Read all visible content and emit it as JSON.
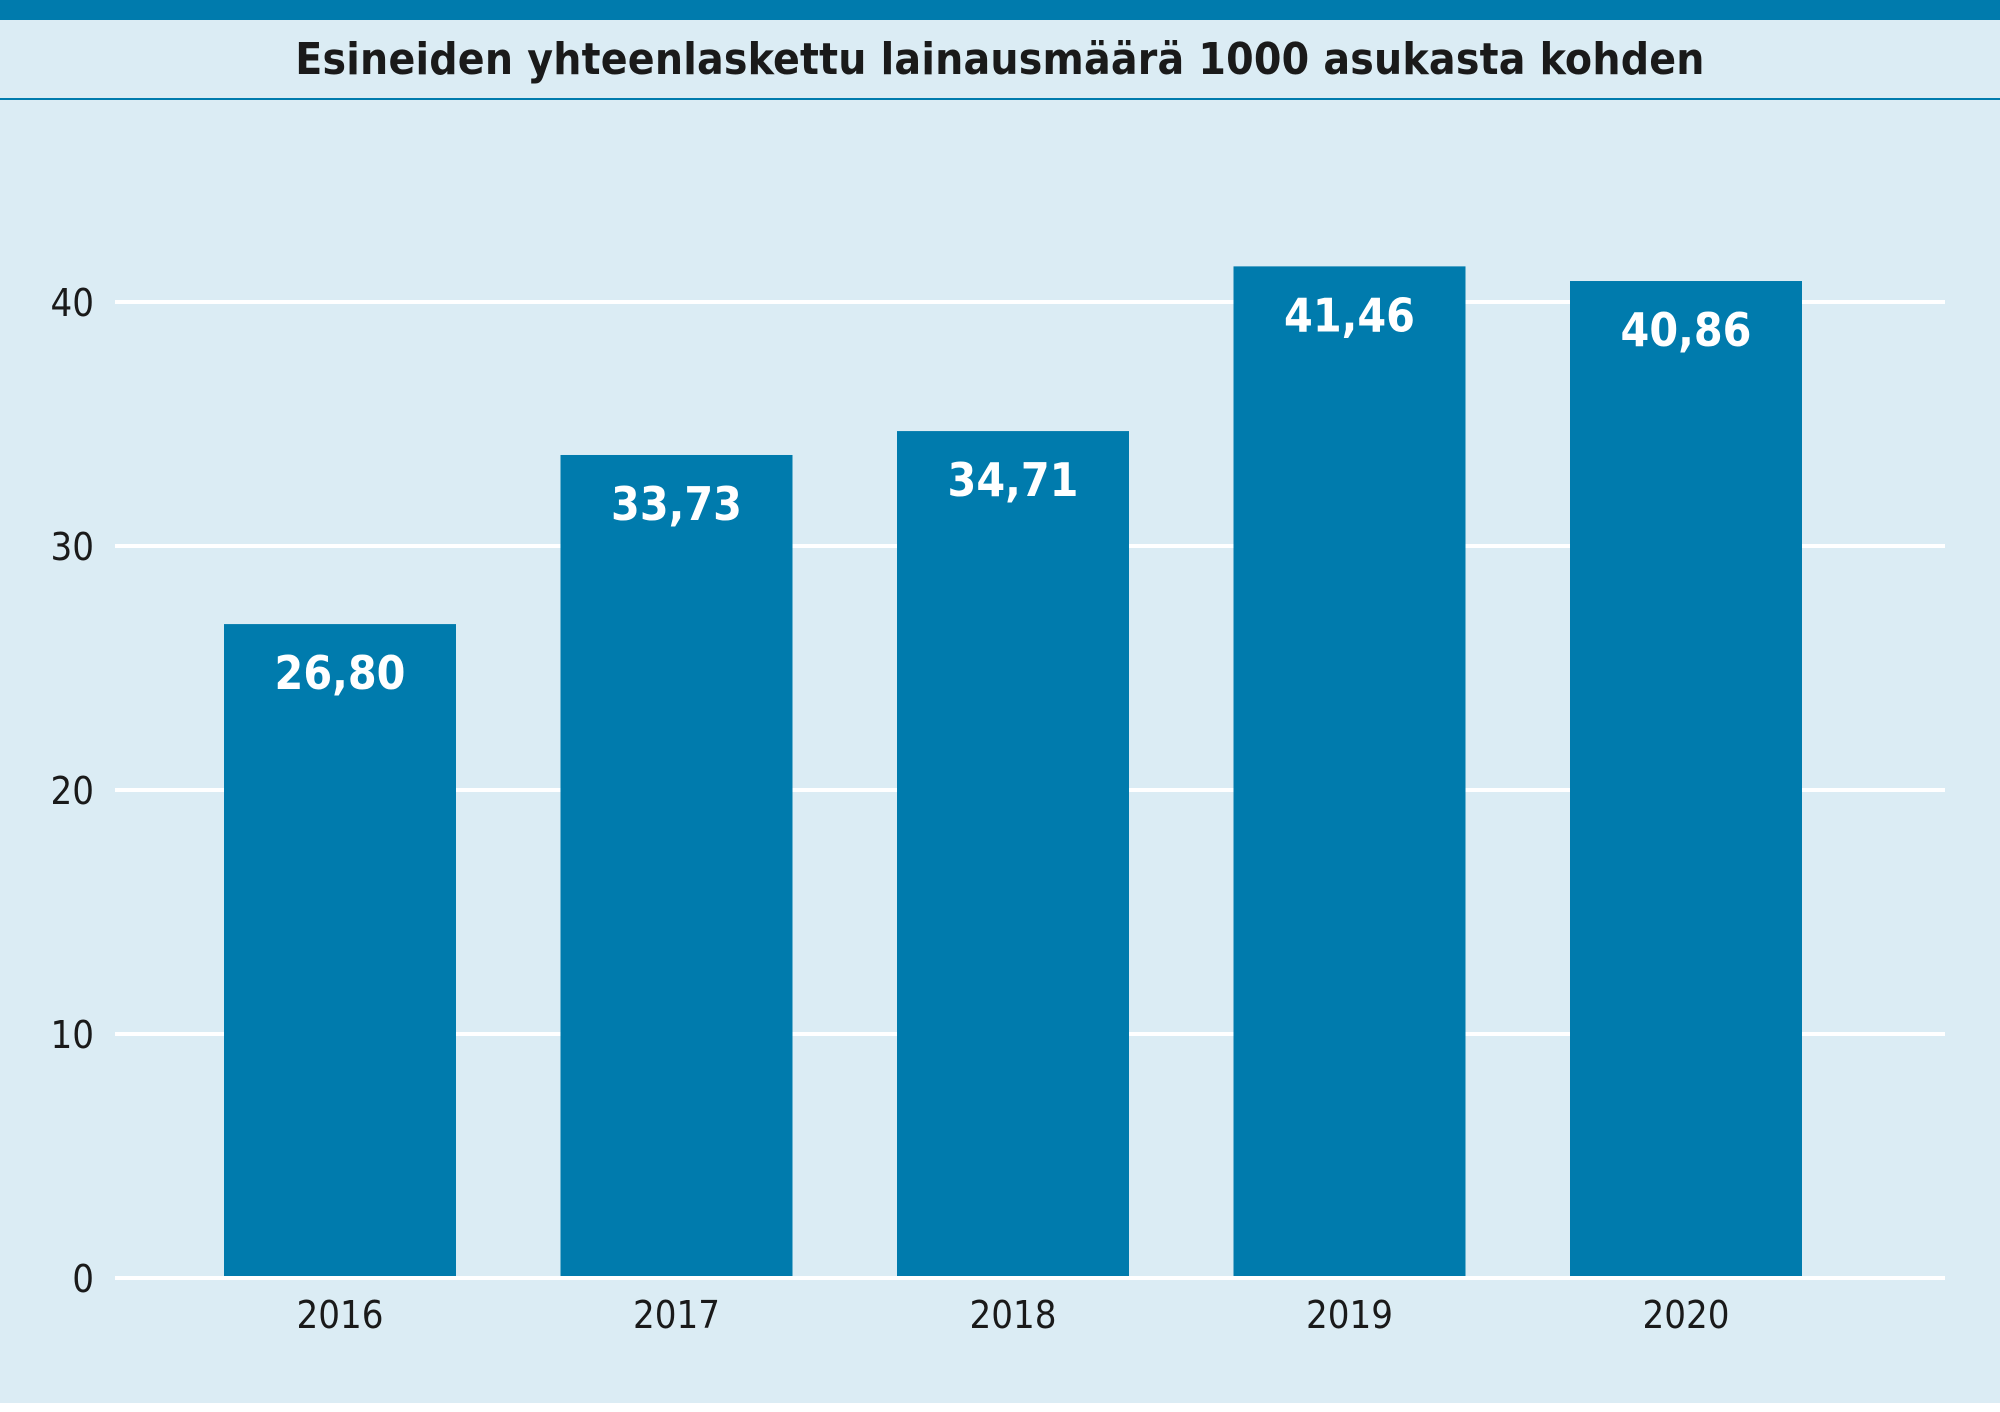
{
  "colors": {
    "background": "#dbecf4",
    "accent": "#007bad",
    "bar": "#007bad",
    "grid": "#ffffff",
    "value_label": "#ffffff",
    "text": "#1a1a1a"
  },
  "chart_data": {
    "type": "bar",
    "title": "Esineiden yhteenlaskettu lainausmäärä 1000 asukasta kohden",
    "xlabel": "",
    "ylabel": "",
    "categories": [
      "2016",
      "2017",
      "2018",
      "2019",
      "2020"
    ],
    "values": [
      26.8,
      33.73,
      34.71,
      41.46,
      40.86
    ],
    "value_labels": [
      "26,80",
      "33,73",
      "34,71",
      "41,46",
      "40,86"
    ],
    "ylim": [
      0,
      45
    ],
    "yticks": [
      0,
      10,
      20,
      30,
      40
    ],
    "grid": true,
    "legend": "none"
  }
}
